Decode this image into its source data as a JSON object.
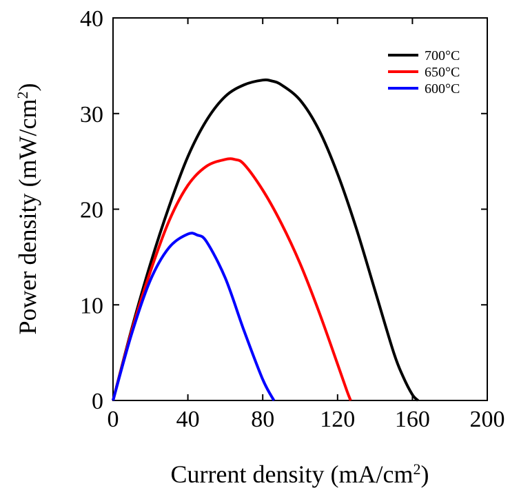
{
  "chart_data": {
    "type": "line",
    "title": "",
    "xlabel": "Current density (mA/cm",
    "xlabel_sup": "2",
    "xlabel_end": ")",
    "ylabel": "Power density (mW/cm",
    "ylabel_sup": "2",
    "ylabel_end": ")",
    "xlim": [
      0,
      200
    ],
    "ylim": [
      0,
      40
    ],
    "xticks": [
      0,
      40,
      80,
      120,
      160,
      200
    ],
    "yticks": [
      0,
      10,
      20,
      30,
      40
    ],
    "grid": false,
    "legend_position": "top-right",
    "series": [
      {
        "name": "700°C",
        "color": "#000000",
        "x": [
          0,
          10,
          20,
          30,
          40,
          50,
          60,
          70,
          80,
          85,
          90,
          100,
          110,
          120,
          130,
          140,
          150,
          155,
          160,
          163
        ],
        "y": [
          0,
          7.5,
          14.3,
          20.3,
          25.5,
          29.3,
          31.8,
          33.0,
          33.5,
          33.4,
          33.0,
          31.4,
          28.3,
          23.7,
          18.0,
          11.5,
          5.0,
          2.5,
          0.6,
          0
        ]
      },
      {
        "name": "650°C",
        "color": "#ff0000",
        "x": [
          0,
          10,
          20,
          30,
          40,
          50,
          60,
          65,
          70,
          80,
          90,
          100,
          110,
          120,
          125,
          127
        ],
        "y": [
          0,
          7.3,
          13.5,
          18.8,
          22.5,
          24.5,
          25.2,
          25.2,
          24.7,
          22.0,
          18.5,
          14.3,
          9.3,
          3.8,
          1.0,
          0
        ]
      },
      {
        "name": "600°C",
        "color": "#0000ff",
        "x": [
          0,
          10,
          20,
          30,
          40,
          45,
          50,
          60,
          70,
          80,
          86
        ],
        "y": [
          0,
          7.0,
          12.6,
          16.0,
          17.4,
          17.3,
          16.6,
          12.8,
          7.3,
          2.2,
          0
        ]
      }
    ]
  }
}
